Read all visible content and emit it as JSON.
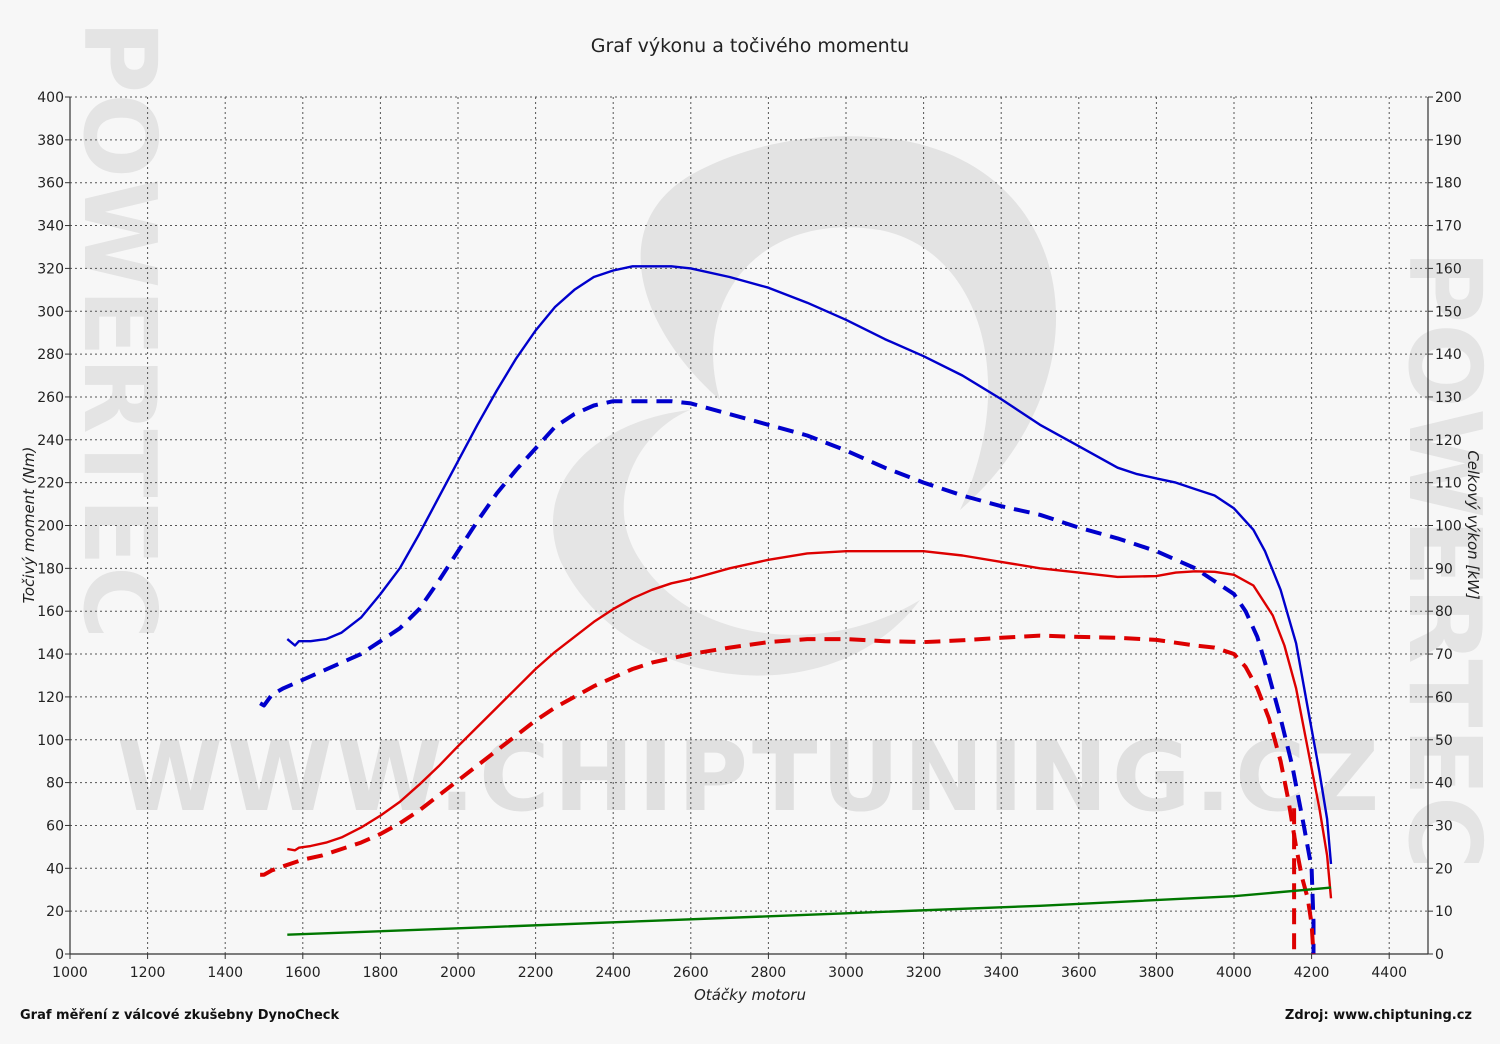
{
  "chart_data": {
    "type": "line",
    "title": "Graf výkonu a točivého momentu",
    "xlabel": "Otáčky motoru",
    "ylabel_left": "Točivý moment (Nm)",
    "ylabel_right": "Celkový výkon [kW]",
    "xlim": [
      1000,
      4500
    ],
    "ylim_left": [
      0,
      400
    ],
    "ylim_right": [
      0,
      200
    ],
    "x_ticks": [
      1000,
      1200,
      1400,
      1600,
      1800,
      2000,
      2200,
      2400,
      2600,
      2800,
      3000,
      3200,
      3400,
      3600,
      3800,
      4000,
      4200,
      4400
    ],
    "y_left_ticks": [
      0,
      20,
      40,
      60,
      80,
      100,
      120,
      140,
      160,
      180,
      200,
      220,
      240,
      260,
      280,
      300,
      320,
      340,
      360,
      380,
      400
    ],
    "y_right_ticks": [
      0,
      10,
      20,
      30,
      40,
      50,
      60,
      70,
      80,
      90,
      100,
      110,
      120,
      130,
      140,
      150,
      160,
      170,
      180,
      190,
      200
    ],
    "grid": true,
    "series": [
      {
        "axis": "left",
        "color": "#0000cc",
        "style": "solid",
        "points": [
          [
            1560,
            147
          ],
          [
            1580,
            144
          ],
          [
            1590,
            146
          ],
          [
            1620,
            146
          ],
          [
            1660,
            147
          ],
          [
            1700,
            150
          ],
          [
            1750,
            157
          ],
          [
            1800,
            168
          ],
          [
            1850,
            180
          ],
          [
            1900,
            196
          ],
          [
            1950,
            213
          ],
          [
            2000,
            230
          ],
          [
            2050,
            247
          ],
          [
            2100,
            263
          ],
          [
            2150,
            278
          ],
          [
            2200,
            291
          ],
          [
            2250,
            302
          ],
          [
            2300,
            310
          ],
          [
            2350,
            316
          ],
          [
            2400,
            319
          ],
          [
            2450,
            321
          ],
          [
            2500,
            321
          ],
          [
            2550,
            321
          ],
          [
            2600,
            320
          ],
          [
            2700,
            316
          ],
          [
            2800,
            311
          ],
          [
            2900,
            304
          ],
          [
            3000,
            296
          ],
          [
            3100,
            287
          ],
          [
            3200,
            279
          ],
          [
            3300,
            270
          ],
          [
            3400,
            259
          ],
          [
            3500,
            247
          ],
          [
            3600,
            237
          ],
          [
            3650,
            232
          ],
          [
            3700,
            227
          ],
          [
            3750,
            224
          ],
          [
            3800,
            222
          ],
          [
            3850,
            220
          ],
          [
            3900,
            217
          ],
          [
            3950,
            214
          ],
          [
            4000,
            208
          ],
          [
            4050,
            198
          ],
          [
            4080,
            188
          ],
          [
            4120,
            170
          ],
          [
            4160,
            145
          ],
          [
            4190,
            115
          ],
          [
            4220,
            85
          ],
          [
            4240,
            63
          ],
          [
            4250,
            42
          ]
        ]
      },
      {
        "axis": "left",
        "color": "#0000cc",
        "style": "dashed",
        "points": [
          [
            1490,
            117
          ],
          [
            1500,
            116
          ],
          [
            1520,
            121
          ],
          [
            1550,
            124
          ],
          [
            1600,
            128
          ],
          [
            1650,
            132
          ],
          [
            1700,
            136
          ],
          [
            1750,
            140
          ],
          [
            1800,
            146
          ],
          [
            1850,
            152
          ],
          [
            1900,
            161
          ],
          [
            1950,
            174
          ],
          [
            2000,
            188
          ],
          [
            2050,
            202
          ],
          [
            2100,
            215
          ],
          [
            2150,
            226
          ],
          [
            2200,
            236
          ],
          [
            2250,
            246
          ],
          [
            2300,
            252
          ],
          [
            2350,
            256
          ],
          [
            2400,
            258
          ],
          [
            2450,
            258
          ],
          [
            2500,
            258
          ],
          [
            2550,
            258
          ],
          [
            2600,
            257
          ],
          [
            2700,
            252
          ],
          [
            2800,
            247
          ],
          [
            2900,
            242
          ],
          [
            3000,
            235
          ],
          [
            3100,
            227
          ],
          [
            3200,
            220
          ],
          [
            3300,
            214
          ],
          [
            3400,
            209
          ],
          [
            3500,
            205
          ],
          [
            3600,
            199
          ],
          [
            3700,
            194
          ],
          [
            3800,
            188
          ],
          [
            3900,
            180
          ],
          [
            3950,
            174
          ],
          [
            4000,
            168
          ],
          [
            4030,
            160
          ],
          [
            4060,
            148
          ],
          [
            4090,
            130
          ],
          [
            4120,
            110
          ],
          [
            4150,
            88
          ],
          [
            4180,
            60
          ],
          [
            4200,
            40
          ],
          [
            4205,
            15
          ],
          [
            4205,
            0
          ]
        ]
      },
      {
        "axis": "right",
        "color": "#dd0000",
        "style": "solid",
        "points": [
          [
            1560,
            24.5
          ],
          [
            1580,
            24.2
          ],
          [
            1590,
            24.8
          ],
          [
            1620,
            25.2
          ],
          [
            1660,
            26
          ],
          [
            1700,
            27.2
          ],
          [
            1750,
            29.5
          ],
          [
            1800,
            32.3
          ],
          [
            1850,
            35.5
          ],
          [
            1900,
            39.5
          ],
          [
            1950,
            43.8
          ],
          [
            2000,
            48.5
          ],
          [
            2050,
            53
          ],
          [
            2100,
            57.5
          ],
          [
            2150,
            62
          ],
          [
            2200,
            66.5
          ],
          [
            2250,
            70.5
          ],
          [
            2300,
            74
          ],
          [
            2350,
            77.5
          ],
          [
            2400,
            80.5
          ],
          [
            2450,
            83
          ],
          [
            2500,
            85
          ],
          [
            2550,
            86.5
          ],
          [
            2600,
            87.5
          ],
          [
            2700,
            90
          ],
          [
            2800,
            92
          ],
          [
            2900,
            93.5
          ],
          [
            3000,
            94
          ],
          [
            3100,
            94
          ],
          [
            3200,
            94
          ],
          [
            3300,
            93
          ],
          [
            3400,
            91.5
          ],
          [
            3500,
            90
          ],
          [
            3600,
            89
          ],
          [
            3700,
            88
          ],
          [
            3800,
            88.2
          ],
          [
            3850,
            89
          ],
          [
            3900,
            89.3
          ],
          [
            3950,
            89.2
          ],
          [
            4000,
            88.5
          ],
          [
            4050,
            86
          ],
          [
            4100,
            79
          ],
          [
            4130,
            72
          ],
          [
            4160,
            62
          ],
          [
            4190,
            48
          ],
          [
            4220,
            34
          ],
          [
            4240,
            23
          ],
          [
            4250,
            13
          ]
        ]
      },
      {
        "axis": "right",
        "color": "#dd0000",
        "style": "dashed",
        "points": [
          [
            1490,
            18.5
          ],
          [
            1500,
            18.5
          ],
          [
            1520,
            19.5
          ],
          [
            1550,
            20.5
          ],
          [
            1600,
            22
          ],
          [
            1650,
            23
          ],
          [
            1700,
            24.5
          ],
          [
            1750,
            26
          ],
          [
            1800,
            28
          ],
          [
            1850,
            30.5
          ],
          [
            1900,
            33.5
          ],
          [
            1950,
            37
          ],
          [
            2000,
            40.5
          ],
          [
            2050,
            44
          ],
          [
            2100,
            47.5
          ],
          [
            2150,
            51
          ],
          [
            2200,
            54.5
          ],
          [
            2250,
            57.5
          ],
          [
            2300,
            60
          ],
          [
            2350,
            62.5
          ],
          [
            2400,
            64.5
          ],
          [
            2450,
            66.5
          ],
          [
            2500,
            68
          ],
          [
            2550,
            69
          ],
          [
            2600,
            70
          ],
          [
            2700,
            71.5
          ],
          [
            2800,
            72.8
          ],
          [
            2900,
            73.5
          ],
          [
            3000,
            73.5
          ],
          [
            3100,
            73
          ],
          [
            3200,
            72.8
          ],
          [
            3300,
            73.2
          ],
          [
            3400,
            73.8
          ],
          [
            3500,
            74.3
          ],
          [
            3600,
            74
          ],
          [
            3700,
            73.8
          ],
          [
            3800,
            73.3
          ],
          [
            3900,
            72
          ],
          [
            3950,
            71.5
          ],
          [
            4000,
            70
          ],
          [
            4030,
            67
          ],
          [
            4060,
            62
          ],
          [
            4090,
            55
          ],
          [
            4120,
            45
          ],
          [
            4140,
            36
          ],
          [
            4160,
            25
          ],
          [
            4175,
            18
          ],
          [
            4190,
            13
          ],
          [
            4200,
            7
          ],
          [
            4205,
            0
          ]
        ]
      },
      {
        "axis": "left",
        "color": "#dd0000",
        "style": "dashed",
        "points": [
          [
            4155,
            68
          ],
          [
            4155,
            0
          ]
        ]
      },
      {
        "axis": "left",
        "color": "#007700",
        "style": "solid",
        "points": [
          [
            1560,
            9
          ],
          [
            2000,
            12
          ],
          [
            2500,
            15.5
          ],
          [
            3000,
            19
          ],
          [
            3500,
            22.5
          ],
          [
            4000,
            27
          ],
          [
            4250,
            31
          ]
        ]
      }
    ]
  },
  "watermark": "WWW.CHIPTUNING.CZ",
  "edge_text": "POWERTEC",
  "footer": {
    "left": "Graf měření z válcové zkušebny DynoCheck",
    "right": "Zdroj: www.chiptuning.cz"
  }
}
